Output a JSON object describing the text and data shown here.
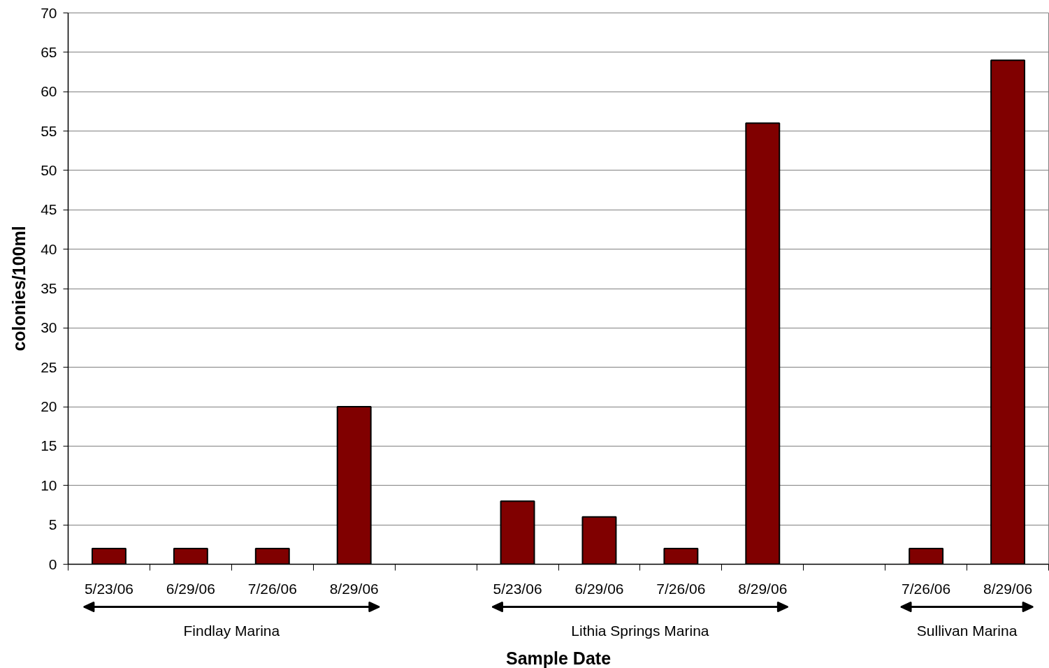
{
  "chart_data": {
    "type": "bar",
    "xlabel": "Sample Date",
    "ylabel": "colonies/100ml",
    "categories": [
      "5/23/06",
      "6/29/06",
      "7/26/06",
      "8/29/06",
      null,
      "5/23/06",
      "6/29/06",
      "7/26/06",
      "8/29/06",
      null,
      "7/26/06",
      "8/29/06"
    ],
    "values": [
      2,
      2,
      2,
      20,
      null,
      8,
      6,
      2,
      56,
      null,
      2,
      64
    ],
    "color": "#800000",
    "ylim": [
      0,
      70
    ],
    "yticks": [
      0,
      5,
      10,
      15,
      20,
      25,
      30,
      35,
      40,
      45,
      50,
      55,
      60,
      65,
      70
    ],
    "grid": "y",
    "annotations": [
      "Findlay Marina",
      "Lithia Springs Marina",
      "Sullivan Marina"
    ]
  }
}
